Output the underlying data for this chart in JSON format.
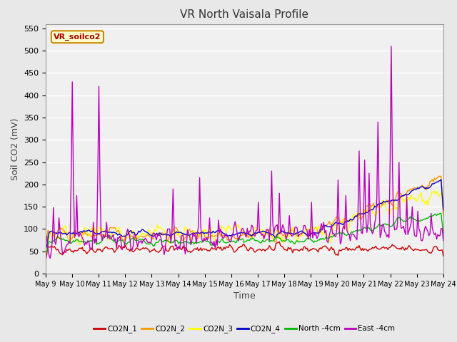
{
  "title": "VR North Vaisala Profile",
  "xlabel": "Time",
  "ylabel": "Soil CO2 (mV)",
  "ylim": [
    0,
    560
  ],
  "yticks": [
    0,
    50,
    100,
    150,
    200,
    250,
    300,
    350,
    400,
    450,
    500,
    550
  ],
  "legend_label": "VR_soilco2",
  "series_names": [
    "CO2N_1",
    "CO2N_2",
    "CO2N_3",
    "CO2N_4",
    "North -4cm",
    "East -4cm"
  ],
  "series_colors": [
    "#cc0000",
    "#ff9900",
    "#ffff00",
    "#0000cc",
    "#00bb00",
    "#bb00bb"
  ],
  "fig_bg_color": "#e8e8e8",
  "plot_bg_color": "#f0f0f0",
  "n_points": 360,
  "x_start": 9,
  "x_end": 24,
  "xtick_positions": [
    9,
    10,
    11,
    12,
    13,
    14,
    15,
    16,
    17,
    18,
    19,
    20,
    21,
    22,
    23,
    24
  ],
  "xtick_labels": [
    "May 9",
    "May 10",
    "May 11",
    "May 12",
    "May 13",
    "May 14",
    "May 15",
    "May 16",
    "May 17",
    "May 18",
    "May 19",
    "May 20",
    "May 21",
    "May 22",
    "May 23",
    "May 24"
  ]
}
